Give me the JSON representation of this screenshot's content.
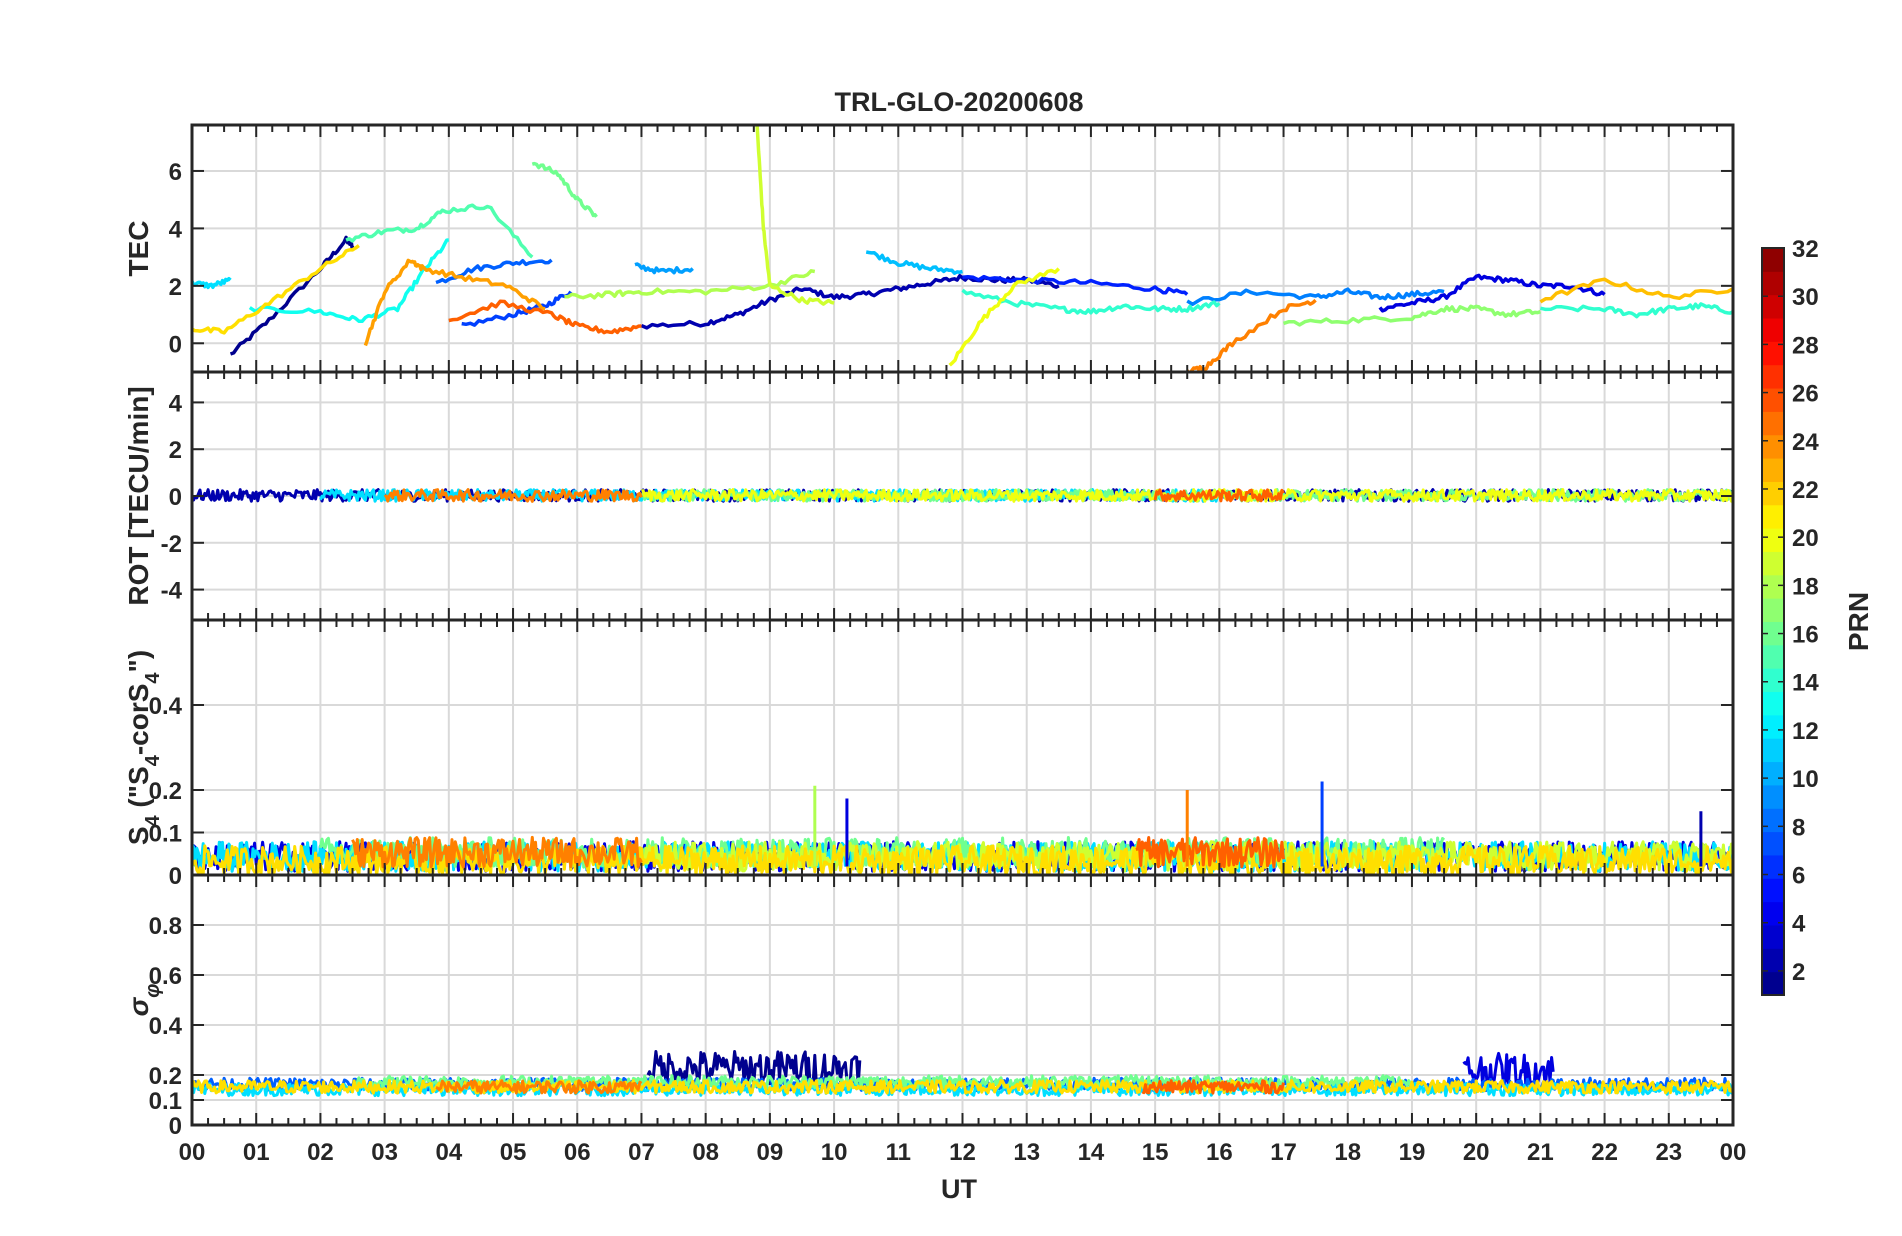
{
  "title": "TRL-GLO-20200608",
  "chart_data": {
    "type": "line",
    "title": "TRL-GLO-20200608",
    "xlabel": "UT",
    "x_ticks": [
      "00",
      "01",
      "02",
      "03",
      "04",
      "05",
      "06",
      "07",
      "08",
      "09",
      "10",
      "11",
      "12",
      "13",
      "14",
      "15",
      "16",
      "17",
      "18",
      "19",
      "20",
      "21",
      "22",
      "23",
      "00"
    ],
    "xlim": [
      0,
      24
    ],
    "panels": [
      {
        "ylabel": "TEC",
        "ylim": [
          -1,
          7.6
        ],
        "yticks": [
          0,
          2,
          4,
          6
        ],
        "ytick_labels": [
          "0",
          "2",
          "4",
          "6"
        ],
        "series": [
          {
            "prn": 1,
            "color": "#00008F",
            "x": [
              0.6,
              1.2,
              2.0,
              2.4,
              2.5
            ],
            "y": [
              -0.4,
              0.8,
              2.6,
              3.6,
              3.4
            ]
          },
          {
            "prn": 2,
            "color": "#0000AF",
            "x": [
              7.0,
              8.0,
              8.5,
              9.0,
              9.5,
              10.0,
              10.5,
              11.0,
              11.5,
              12.0,
              12.5,
              13.0,
              13.5
            ],
            "y": [
              0.6,
              0.7,
              1.0,
              1.5,
              1.9,
              1.6,
              1.7,
              1.9,
              2.1,
              2.3,
              2.2,
              2.2,
              2.0
            ]
          },
          {
            "prn": 3,
            "color": "#0000DF",
            "x": [
              18.5,
              19.0,
              19.5,
              20.0,
              20.5,
              21.0,
              21.5,
              22.0
            ],
            "y": [
              1.2,
              1.4,
              1.6,
              2.3,
              2.2,
              2.0,
              2.0,
              1.7
            ]
          },
          {
            "prn": 4,
            "color": "#0020FF",
            "x": [
              12.0,
              13.0,
              14.0,
              15.0,
              15.5
            ],
            "y": [
              2.3,
              2.2,
              2.1,
              1.9,
              1.7
            ]
          },
          {
            "prn": 5,
            "color": "#0040FF",
            "x": [
              4.2,
              5.0,
              5.5,
              5.9
            ],
            "y": [
              0.6,
              1.0,
              1.3,
              1.8
            ]
          },
          {
            "prn": 6,
            "color": "#0060FF",
            "x": [
              3.8,
              4.4,
              5.0,
              5.6
            ],
            "y": [
              2.1,
              2.6,
              2.8,
              2.9
            ]
          },
          {
            "prn": 7,
            "color": "#0080FF",
            "x": [
              15.5,
              16.5,
              17.5,
              18.0,
              18.5,
              19.0,
              19.5
            ],
            "y": [
              1.4,
              1.8,
              1.6,
              1.8,
              1.6,
              1.7,
              1.8
            ]
          },
          {
            "prn": 8,
            "color": "#009FFF",
            "x": [
              6.9,
              7.3,
              7.8
            ],
            "y": [
              2.7,
              2.5,
              2.6
            ]
          },
          {
            "prn": 9,
            "color": "#00BFFF",
            "x": [
              10.5,
              11.0,
              11.5,
              12.0
            ],
            "y": [
              3.2,
              2.8,
              2.6,
              2.5
            ]
          },
          {
            "prn": 10,
            "color": "#00DFFF",
            "x": [
              0.0,
              0.3,
              0.6
            ],
            "y": [
              2.1,
              2.0,
              2.2
            ]
          },
          {
            "prn": 11,
            "color": "#10FFEF",
            "x": [
              0.9,
              2.0,
              2.6,
              3.2,
              3.6,
              4.0
            ],
            "y": [
              1.2,
              1.1,
              0.8,
              1.2,
              2.5,
              3.6
            ]
          },
          {
            "prn": 12,
            "color": "#30FFCF",
            "x": [
              21.0,
              22.0,
              22.5,
              23.0,
              23.5,
              24.0
            ],
            "y": [
              1.2,
              1.2,
              1.0,
              1.2,
              1.3,
              1.1
            ]
          },
          {
            "prn": 14,
            "color": "#30FFCF",
            "x": [
              12.0,
              12.8,
              13.5,
              14.0,
              14.5,
              15.0,
              15.5,
              16.0
            ],
            "y": [
              1.8,
              1.4,
              1.2,
              1.1,
              1.3,
              1.2,
              1.2,
              1.4
            ]
          },
          {
            "prn": 15,
            "color": "#50FFAF",
            "x": [
              2.4,
              3.0,
              3.5,
              3.9,
              4.6,
              5.3
            ],
            "y": [
              3.6,
              3.9,
              4.0,
              4.6,
              4.8,
              3.0
            ]
          },
          {
            "prn": 16,
            "color": "#70FF8F",
            "x": [
              5.3,
              5.7,
              6.0,
              6.3
            ],
            "y": [
              6.3,
              5.9,
              5.0,
              4.4
            ]
          },
          {
            "prn": 17,
            "color": "#8FFF70",
            "x": [
              17.0,
              18.0,
              19.0,
              19.5,
              20.0,
              20.5,
              21.0
            ],
            "y": [
              0.7,
              0.8,
              0.9,
              1.2,
              1.2,
              1.0,
              1.1
            ]
          },
          {
            "prn": 18,
            "color": "#AFFF50",
            "x": [
              5.8,
              6.5,
              7.0,
              8.0,
              9.0,
              9.7
            ],
            "y": [
              1.6,
              1.7,
              1.8,
              1.8,
              2.0,
              2.5
            ]
          },
          {
            "prn": 19,
            "color": "#CFFF30",
            "x": [
              8.8,
              8.9,
              9.0,
              9.5,
              10.0
            ],
            "y": [
              7.6,
              4.0,
              2.0,
              1.5,
              1.4
            ]
          },
          {
            "prn": 20,
            "color": "#EFFF10",
            "x": [
              11.8,
              12.3,
              12.8,
              13.5
            ],
            "y": [
              -0.8,
              0.8,
              2.0,
              2.6
            ]
          },
          {
            "prn": 21,
            "color": "#FFDF00",
            "x": [
              0.0,
              0.5,
              1.2,
              2.0,
              2.6
            ],
            "y": [
              0.5,
              0.4,
              1.4,
              2.6,
              3.4
            ]
          },
          {
            "prn": 22,
            "color": "#FFBF00",
            "x": [
              21.0,
              22.0,
              23.0,
              24.0
            ],
            "y": [
              1.5,
              2.2,
              1.6,
              1.9
            ]
          },
          {
            "prn": 23,
            "color": "#FF9F00",
            "x": [
              2.7,
              3.0,
              3.4,
              3.6,
              4.2,
              4.9,
              5.5
            ],
            "y": [
              0.0,
              1.8,
              2.9,
              2.6,
              2.3,
              2.0,
              1.2
            ]
          },
          {
            "prn": 24,
            "color": "#FF8000",
            "x": [
              15.5,
              15.8,
              16.2,
              17.0,
              17.5
            ],
            "y": [
              -1.0,
              -0.8,
              0.0,
              1.2,
              1.5
            ]
          },
          {
            "prn": 25,
            "color": "#FF6000",
            "x": [
              4.0,
              4.8,
              5.6,
              6.0,
              6.5,
              7.0
            ],
            "y": [
              0.8,
              1.4,
              1.0,
              0.6,
              0.4,
              0.6
            ]
          }
        ]
      },
      {
        "ylabel": "ROT [TECU/min]",
        "ylim": [
          -5.3,
          5.3
        ],
        "yticks": [
          -4,
          -2,
          0,
          2,
          4
        ],
        "ytick_labels": [
          "-4",
          "-2",
          "0",
          "2",
          "4"
        ],
        "series": [
          {
            "prn": 2,
            "color": "#0000AF",
            "x": [
              0,
              24
            ],
            "y": [
              0.0,
              0.0
            ]
          },
          {
            "prn": 10,
            "color": "#00DFFF",
            "x": [
              2,
              16
            ],
            "y": [
              0.0,
              0.0
            ]
          },
          {
            "prn": 16,
            "color": "#70FF8F",
            "x": [
              7,
              24
            ],
            "y": [
              0.0,
              0.0
            ]
          },
          {
            "prn": 20,
            "color": "#EFFF10",
            "x": [
              7,
              24
            ],
            "y": [
              0.0,
              0.0
            ]
          },
          {
            "prn": 24,
            "color": "#FF8000",
            "x": [
              3,
              7
            ],
            "y": [
              0.0,
              0.0
            ]
          },
          {
            "prn": 25,
            "color": "#FF6000",
            "x": [
              15,
              17
            ],
            "y": [
              0.0,
              0.0
            ]
          }
        ]
      },
      {
        "ylabel": "S4 (\"S4-corS4\")",
        "ylim": [
          0,
          0.6
        ],
        "yticks": [
          0,
          0.1,
          0.2,
          0.4
        ],
        "ytick_labels": [
          "0",
          "0.1",
          "0.2",
          "0.4"
        ],
        "band_baseline": 0.04,
        "series": [
          {
            "prn": 3,
            "color": "#0000DF",
            "x": [
              0.0,
              24.0
            ],
            "y": [
              0.04,
              0.04
            ]
          },
          {
            "prn": 10,
            "color": "#00DFFF",
            "x": [
              0.0,
              24.0
            ],
            "y": [
              0.04,
              0.04
            ]
          },
          {
            "prn": 16,
            "color": "#70FF8F",
            "x": [
              2.0,
              19.5
            ],
            "y": [
              0.05,
              0.05
            ]
          },
          {
            "prn": 19,
            "color": "#CFFF30",
            "x": [
              7.0,
              24.0
            ],
            "y": [
              0.04,
              0.04
            ]
          },
          {
            "prn": 21,
            "color": "#FFDF00",
            "x": [
              0.0,
              24.0
            ],
            "y": [
              0.03,
              0.03
            ]
          },
          {
            "prn": 24,
            "color": "#FF8000",
            "x": [
              2.5,
              7.0
            ],
            "y": [
              0.05,
              0.05
            ]
          },
          {
            "prn": 25,
            "color": "#FF6000",
            "x": [
              14.7,
              17.0
            ],
            "y": [
              0.05,
              0.05
            ]
          }
        ],
        "spikes": [
          {
            "color": "#FF8000",
            "x": 15.5,
            "y": 0.2
          },
          {
            "color": "#0040FF",
            "x": 17.6,
            "y": 0.22
          },
          {
            "color": "#AFFF50",
            "x": 9.7,
            "y": 0.21
          },
          {
            "color": "#0000DF",
            "x": 10.2,
            "y": 0.18
          },
          {
            "color": "#0000AF",
            "x": 23.5,
            "y": 0.15
          }
        ]
      },
      {
        "ylabel": "σφ",
        "ylim": [
          0,
          1.0
        ],
        "yticks": [
          0,
          0.1,
          0.2,
          0.4,
          0.6,
          0.8
        ],
        "ytick_labels": [
          "0",
          "0.1",
          "0.2",
          "0.4",
          "0.6",
          "0.8"
        ],
        "band_baseline": 0.15,
        "series": [
          {
            "prn": 2,
            "color": "#00008F",
            "x": [
              7.1,
              10.4
            ],
            "y": [
              0.22,
              0.22
            ]
          },
          {
            "prn": 3,
            "color": "#0000DF",
            "x": [
              19.8,
              21.2
            ],
            "y": [
              0.21,
              0.21
            ]
          },
          {
            "prn": 6,
            "color": "#0060FF",
            "x": [
              0.0,
              24.0
            ],
            "y": [
              0.16,
              0.16
            ]
          },
          {
            "prn": 10,
            "color": "#00DFFF",
            "x": [
              0.0,
              24.0
            ],
            "y": [
              0.14,
              0.14
            ]
          },
          {
            "prn": 16,
            "color": "#70FF8F",
            "x": [
              2.5,
              19.0
            ],
            "y": [
              0.17,
              0.17
            ]
          },
          {
            "prn": 21,
            "color": "#FFDF00",
            "x": [
              0.0,
              24.0
            ],
            "y": [
              0.15,
              0.15
            ]
          },
          {
            "prn": 24,
            "color": "#FF8000",
            "x": [
              3.8,
              7.0
            ],
            "y": [
              0.15,
              0.15
            ]
          },
          {
            "prn": 25,
            "color": "#FF6000",
            "x": [
              14.8,
              17.0
            ],
            "y": [
              0.15,
              0.15
            ]
          }
        ]
      }
    ],
    "colorbar": {
      "label": "PRN",
      "range": [
        1,
        32
      ],
      "tick_labels": [
        "2",
        "4",
        "6",
        "8",
        "10",
        "12",
        "14",
        "16",
        "18",
        "20",
        "22",
        "24",
        "26",
        "28",
        "30",
        "32"
      ],
      "colors": [
        "#00008F",
        "#0000AF",
        "#0000CF",
        "#0000EF",
        "#0010FF",
        "#0030FF",
        "#0050FF",
        "#0070FF",
        "#008FFF",
        "#00AFFF",
        "#00CFFF",
        "#00EFFF",
        "#10FFEF",
        "#30FFCF",
        "#50FFAF",
        "#70FF8F",
        "#8FFF70",
        "#AFFF50",
        "#CFFF30",
        "#EFFF10",
        "#FFEF00",
        "#FFCF00",
        "#FFAF00",
        "#FF8F00",
        "#FF7000",
        "#FF5000",
        "#FF3000",
        "#FF1000",
        "#EF0000",
        "#CF0000",
        "#AF0000",
        "#8F0000"
      ]
    }
  }
}
